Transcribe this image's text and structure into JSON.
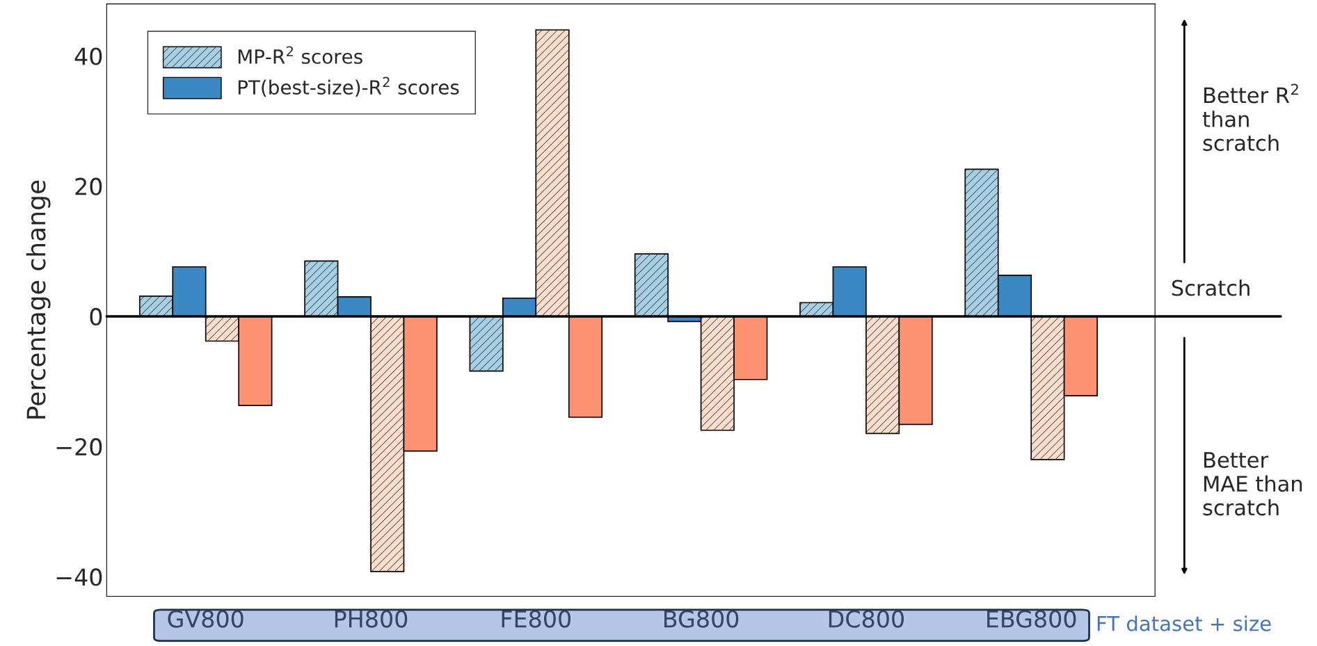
{
  "chart_data": {
    "type": "bar",
    "ylabel": "Percentage change",
    "xlabel": "FT dataset + size",
    "categories": [
      "GV800",
      "PH800",
      "FE800",
      "BG800",
      "DC800",
      "EBG800"
    ],
    "series": [
      {
        "name": "MP-R$^{2}$ scores",
        "color": "#a6cfe4",
        "values": [
          3.1,
          8.5,
          -8.4,
          9.6,
          2.1,
          22.6
        ]
      },
      {
        "name": "PT(best-size)-R$^{2}$ scores",
        "color": "#3a88c4",
        "values": [
          7.6,
          3.0,
          2.8,
          -0.8,
          7.6,
          6.3
        ]
      },
      {
        "color": "#fcdccb",
        "values": [
          -3.8,
          -39.2,
          44.0,
          -17.5,
          -18.0,
          -22.0
        ]
      },
      {
        "color": "#fc9272",
        "values": [
          -13.7,
          -20.7,
          -15.5,
          -9.7,
          -16.6,
          -12.2
        ]
      }
    ],
    "ylim": [
      -43,
      48
    ],
    "yticks": [
      {
        "value": -40,
        "label": "−40"
      },
      {
        "value": -20,
        "label": "−20"
      },
      0,
      20,
      40
    ],
    "ref_lines": [
      {
        "axis": "y",
        "value": 0,
        "label": "Scratch",
        "color": "#000000"
      }
    ],
    "annotations": [
      "Better R$^{2}$ than scratch",
      "Better MAE than scratch"
    ],
    "legend": "top left",
    "grid": false
  }
}
